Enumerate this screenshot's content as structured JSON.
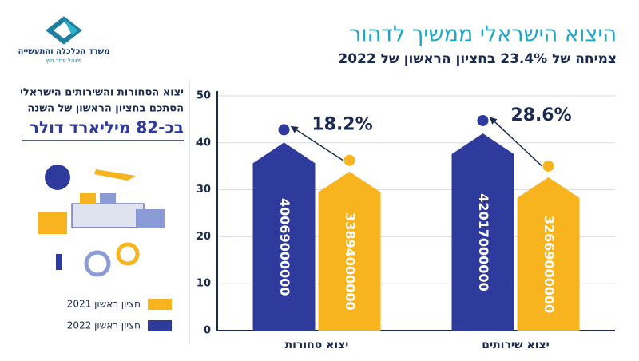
{
  "logo": {
    "name": "משרד הכלכלה והתעשייה",
    "unit": "מינהל סחר חוץ"
  },
  "panel": {
    "lines": [
      "יצוא הסחורות והשירותים הישראלי",
      "הסתכם בחציון הראשון של השנה"
    ],
    "highlight": "בכ-82 מיליארד דולר"
  },
  "chart_data": {
    "type": "bar",
    "title": "היצוא הישראלי ממשיך לדהור",
    "subtitle": "צמיחה של 23.4% בחציון הראשון של 2022",
    "categories": [
      "יצוא סחורות",
      "יצוא שירותים"
    ],
    "series": [
      {
        "name": "חציון ראשון 2022",
        "color": "#2f3b9c",
        "values": [
          40.069,
          42.017
        ],
        "value_labels": [
          "40069000000",
          "42017000000"
        ]
      },
      {
        "name": "חציון ראשון 2021",
        "color": "#f7b41e",
        "values": [
          33.894,
          32.669
        ],
        "value_labels": [
          "33894000000",
          "32669000000"
        ]
      }
    ],
    "annotations": [
      "18.2%",
      "28.6%"
    ],
    "ylim": [
      0,
      50
    ],
    "yticks": [
      0,
      10,
      20,
      30,
      40,
      50
    ],
    "grid": true
  }
}
